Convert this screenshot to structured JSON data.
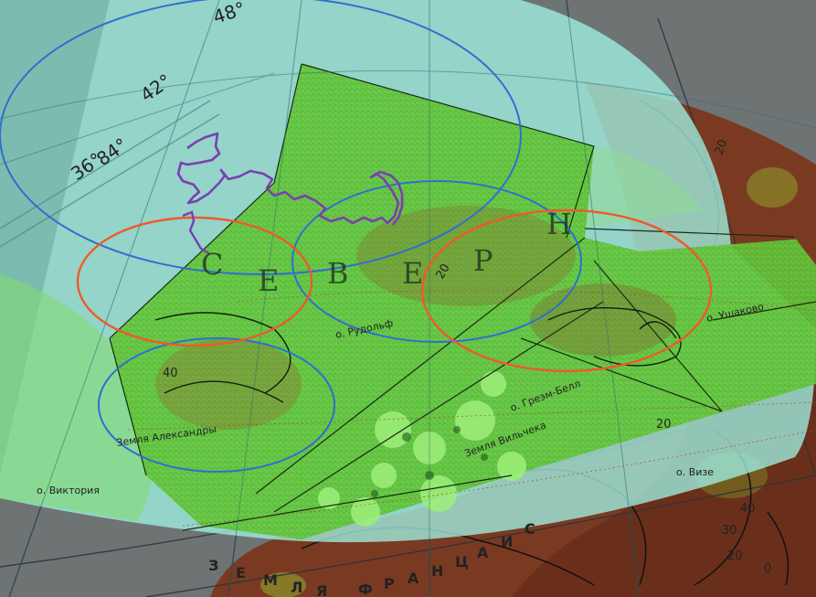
{
  "map": {
    "meridian_labels": [
      "48°",
      "42°",
      "36°",
      "84°"
    ],
    "sea_letters": [
      "С",
      "Е",
      "В",
      "Е",
      "Р",
      "Н"
    ],
    "place_labels": {
      "rudolf": "о. Рудольф",
      "ushakov": "о. Ушаково",
      "greem_bell": "о. Греэм-Белл",
      "alexandra": "Земля Александры",
      "vilchek": "Земля Вильчека",
      "victoria": "о. Виктория",
      "vize": "о. Визе"
    },
    "land_letters": [
      "З",
      "Е",
      "М",
      "Л",
      "Я",
      "Ф",
      "Р",
      "А",
      "Н",
      "Ц",
      "А",
      "И",
      "С"
    ],
    "contour_labels": [
      "20",
      "40",
      "20",
      "20",
      "40",
      "30",
      "20",
      "0"
    ],
    "colors": {
      "background": "#000000",
      "base_map_gray": "#6e7374",
      "cyan_overlay": "#8fe8dc",
      "green_satellite": "#62c83c",
      "brown_land": "#7a3a22",
      "orange_ellipse": "#ee5a2a",
      "blue_ellipse": "#2f6fd0",
      "purple_track": "#7a3fb0"
    }
  }
}
